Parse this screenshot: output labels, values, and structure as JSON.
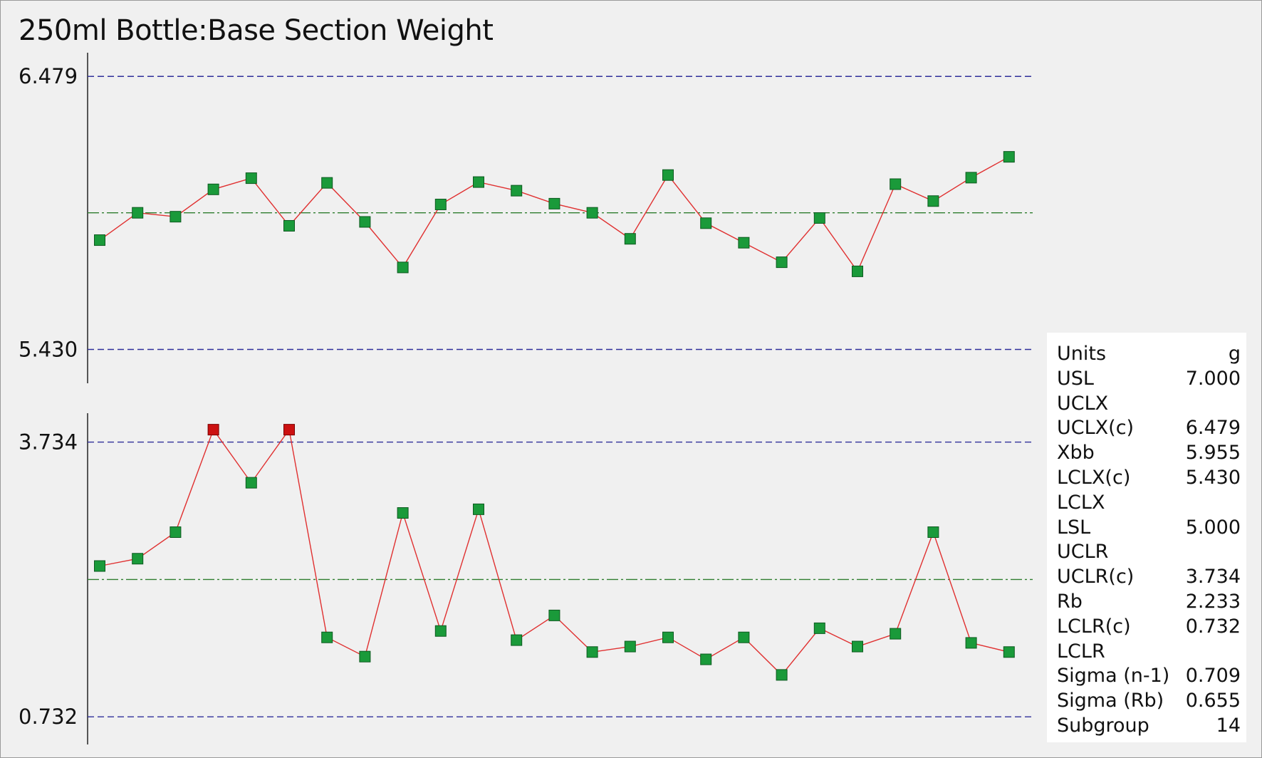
{
  "title": "250ml Bottle:Base Section Weight",
  "colors": {
    "background": "#f0f0f0",
    "limit_line": "#2e2e9a",
    "center_line": "#2e7d2e",
    "series_line": "#e03030",
    "point_in_control": "#1a9a3a",
    "point_out_of_control": "#cc1111"
  },
  "chart_data": [
    {
      "type": "line",
      "name": "xbar",
      "x": [
        1,
        2,
        3,
        4,
        5,
        6,
        7,
        8,
        9,
        10,
        11,
        12,
        13,
        14,
        15,
        16,
        17,
        18,
        19,
        20,
        21,
        22,
        23,
        24,
        25
      ],
      "values": [
        5.85,
        5.955,
        5.94,
        6.045,
        6.088,
        5.905,
        6.07,
        5.92,
        5.745,
        5.987,
        6.073,
        6.04,
        5.99,
        5.955,
        5.855,
        6.1,
        5.915,
        5.84,
        5.765,
        5.935,
        5.73,
        6.065,
        6.0,
        6.09,
        6.17
      ],
      "y_tick_labels": [
        "6.479",
        "5.430"
      ],
      "ucl": 6.479,
      "center": 5.955,
      "lcl": 5.43,
      "ylim": [
        5.3,
        6.57
      ]
    },
    {
      "type": "line",
      "name": "range",
      "x": [
        1,
        2,
        3,
        4,
        5,
        6,
        7,
        8,
        9,
        10,
        11,
        12,
        13,
        14,
        15,
        16,
        17,
        18,
        19,
        20,
        21,
        22,
        23,
        24,
        25
      ],
      "values": [
        2.38,
        2.46,
        2.75,
        3.87,
        3.29,
        3.87,
        1.6,
        1.39,
        2.96,
        1.67,
        3.0,
        1.57,
        1.84,
        1.44,
        1.5,
        1.6,
        1.36,
        1.6,
        1.19,
        1.7,
        1.5,
        1.64,
        2.75,
        1.54,
        1.44
      ],
      "out_of_control": [
        false,
        false,
        false,
        true,
        false,
        true,
        false,
        false,
        false,
        false,
        false,
        false,
        false,
        false,
        false,
        false,
        false,
        false,
        false,
        false,
        false,
        false,
        false,
        false,
        false
      ],
      "y_tick_labels": [
        "3.734",
        "0.732"
      ],
      "ucl": 3.734,
      "center": 2.233,
      "lcl": 0.732,
      "ylim": [
        0.43,
        4.05
      ]
    }
  ],
  "stats": [
    {
      "label": "Units",
      "value": "g"
    },
    {
      "label": "USL",
      "value": "7.000"
    },
    {
      "label": "UCLX",
      "value": ""
    },
    {
      "label": "UCLX(c)",
      "value": "6.479"
    },
    {
      "label": "Xbb",
      "value": "5.955"
    },
    {
      "label": "LCLX(c)",
      "value": "5.430"
    },
    {
      "label": "LCLX",
      "value": ""
    },
    {
      "label": "LSL",
      "value": "5.000"
    },
    {
      "label": "UCLR",
      "value": ""
    },
    {
      "label": "UCLR(c)",
      "value": "3.734"
    },
    {
      "label": "Rb",
      "value": "2.233"
    },
    {
      "label": "LCLR(c)",
      "value": "0.732"
    },
    {
      "label": "LCLR",
      "value": ""
    },
    {
      "label": "Sigma (n-1)",
      "value": "0.709"
    },
    {
      "label": "Sigma (Rb)",
      "value": "0.655"
    },
    {
      "label": "Subgroup",
      "value": "14"
    }
  ]
}
